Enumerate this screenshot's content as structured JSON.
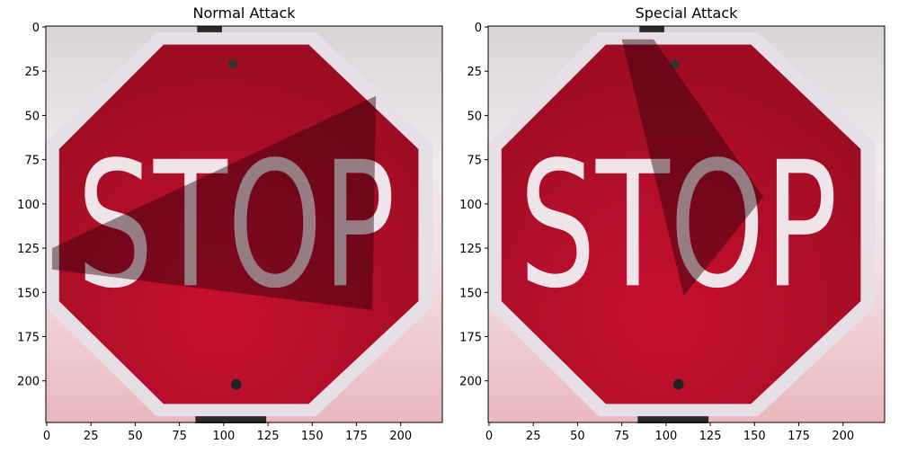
{
  "panels": [
    {
      "title": "Normal Attack",
      "sign_text": "STOP",
      "xlim": [
        -0.5,
        223.5
      ],
      "ylim": [
        223.5,
        -0.5
      ],
      "xticks": [
        0,
        25,
        50,
        75,
        100,
        125,
        150,
        175,
        200
      ],
      "yticks": [
        0,
        25,
        50,
        75,
        100,
        125,
        150,
        175,
        200
      ]
    },
    {
      "title": "Special Attack",
      "sign_text": "STOP",
      "xlim": [
        -0.5,
        223.5
      ],
      "ylim": [
        223.5,
        -0.5
      ],
      "xticks": [
        0,
        25,
        50,
        75,
        100,
        125,
        150,
        175,
        200
      ],
      "yticks": [
        0,
        25,
        50,
        75,
        100,
        125,
        150,
        175,
        200
      ]
    }
  ]
}
